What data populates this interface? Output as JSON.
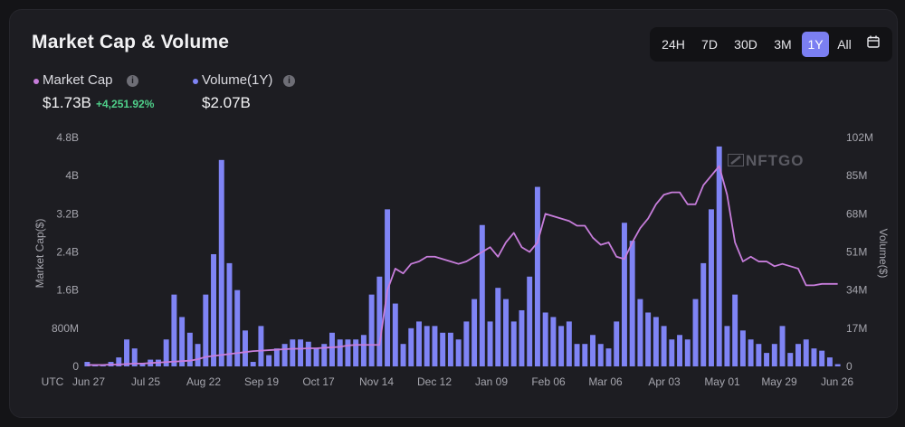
{
  "title": "Market Cap & Volume",
  "range_buttons": [
    "24H",
    "7D",
    "30D",
    "3M",
    "1Y",
    "All"
  ],
  "active_range": "1Y",
  "legend": {
    "market_cap": {
      "label": "Market Cap",
      "value": "$1.73B",
      "change": "+4,251.92%"
    },
    "volume": {
      "label": "Volume(1Y)",
      "value": "$2.07B"
    }
  },
  "watermark": "NFTGO",
  "colors": {
    "market_cap": "#c77ddb",
    "volume": "#7f84f5",
    "positive": "#4fd08a",
    "active": "#7b7ff2"
  },
  "chart_data": {
    "type": "bar",
    "xlabel": "",
    "ylabel_left": "Market Cap($)",
    "ylabel_right": "Volume($)",
    "x_tick_labels": [
      "UTC",
      "Jun 27",
      "Jul 25",
      "Aug 22",
      "Sep 19",
      "Oct 17",
      "Nov 14",
      "Dec 12",
      "Jan 09",
      "Feb 06",
      "Mar 06",
      "Apr 03",
      "May 01",
      "May 29",
      "Jun 26"
    ],
    "left_ticks": [
      "0",
      "800M",
      "1.6B",
      "2.4B",
      "3.2B",
      "4B",
      "4.8B"
    ],
    "right_ticks": [
      "0",
      "17M",
      "34M",
      "51M",
      "68M",
      "85M",
      "102M"
    ],
    "ylim_left": [
      0,
      4.8
    ],
    "ylim_right": [
      0,
      102
    ],
    "series": [
      {
        "name": "Volume(1Y)",
        "type": "bar",
        "unit": "M",
        "values": [
          2,
          1,
          1,
          2,
          4,
          12,
          8,
          1,
          3,
          3,
          12,
          32,
          22,
          15,
          10,
          32,
          50,
          92,
          46,
          34,
          16,
          2,
          18,
          5,
          8,
          10,
          12,
          12,
          11,
          8,
          10,
          15,
          12,
          12,
          12,
          14,
          32,
          40,
          70,
          28,
          10,
          17,
          20,
          18,
          18,
          15,
          15,
          12,
          20,
          30,
          63,
          20,
          35,
          30,
          20,
          25,
          40,
          80,
          24,
          22,
          18,
          20,
          10,
          10,
          14,
          10,
          8,
          20,
          64,
          56,
          30,
          24,
          22,
          18,
          12,
          14,
          12,
          30,
          46,
          70,
          98,
          18,
          32,
          16,
          12,
          10,
          6,
          10,
          18,
          6,
          10,
          12,
          8,
          7,
          4,
          1
        ]
      },
      {
        "name": "Market Cap",
        "type": "line",
        "unit": "B",
        "values": [
          0.03,
          0.03,
          0.03,
          0.04,
          0.04,
          0.05,
          0.06,
          0.06,
          0.07,
          0.08,
          0.09,
          0.1,
          0.11,
          0.12,
          0.15,
          0.2,
          0.22,
          0.24,
          0.26,
          0.28,
          0.3,
          0.32,
          0.33,
          0.34,
          0.35,
          0.36,
          0.37,
          0.37,
          0.38,
          0.38,
          0.39,
          0.4,
          0.41,
          0.44,
          0.45,
          0.45,
          0.45,
          0.45,
          1.6,
          2.05,
          1.95,
          2.15,
          2.2,
          2.3,
          2.3,
          2.25,
          2.2,
          2.15,
          2.2,
          2.3,
          2.4,
          2.5,
          2.3,
          2.6,
          2.8,
          2.5,
          2.4,
          2.6,
          3.2,
          3.15,
          3.1,
          3.05,
          2.95,
          2.95,
          2.7,
          2.55,
          2.6,
          2.3,
          2.25,
          2.6,
          2.9,
          3.1,
          3.4,
          3.6,
          3.65,
          3.65,
          3.4,
          3.4,
          3.8,
          4.0,
          4.2,
          3.6,
          2.6,
          2.2,
          2.3,
          2.2,
          2.2,
          2.1,
          2.15,
          2.1,
          2.05,
          1.7,
          1.7,
          1.73,
          1.73,
          1.73
        ]
      }
    ]
  }
}
